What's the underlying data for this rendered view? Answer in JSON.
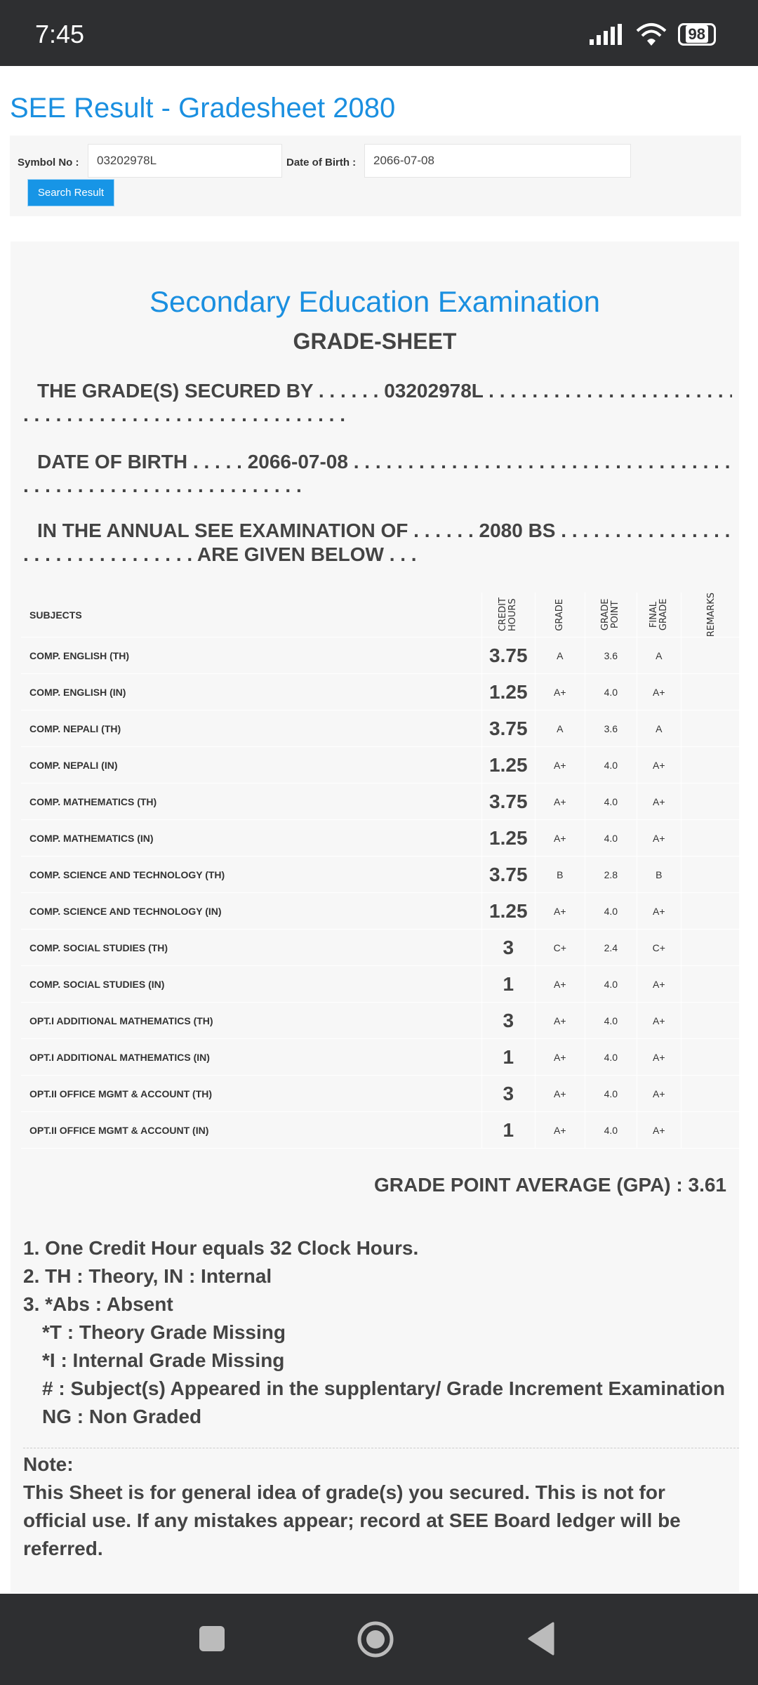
{
  "status": {
    "time": "7:45",
    "battery": "98"
  },
  "page_title": "SEE Result - Gradesheet 2080",
  "form": {
    "symbol_label": "Symbol No :",
    "symbol_value": "03202978L",
    "dob_label": "Date of Birth :",
    "dob_value": "2066-07-08",
    "search_button": "Search Result"
  },
  "sheet": {
    "heading": "Secondary Education Examination",
    "subheading": "GRADE-SHEET",
    "line1": "THE GRADE(S) SECURED BY . . . . . . 03202978L . . . . . . . . . . . . . . . . . . . . . . . . . . . . . . . . . . . . . . . . . . . . . . . . . . . . . . . .",
    "line1b": ". . . . . . . . . . . . . . . . . . . . . . . . . . . . . .",
    "line2": "DATE OF BIRTH . . . . . 2066-07-08 . . . . . . . . . . . . . . . . . . . . . . . . . . . . . . . . . . . . . . . . . . . . . . . . . . . . . . . . . .",
    "line2b": ". . . . . . . . . . . . . . . . . . . . . . . . . .",
    "line3": "IN THE ANNUAL SEE EXAMINATION OF . . . . . . 2080 BS . . . . . . . . . . . . . . . . . . . . . . . . . . . . . . . . .",
    "line3b": ". . . . . . . . . . . . . . . . ARE GIVEN BELOW . . .",
    "columns": [
      "SUBJECTS",
      "CREDIT HOURS",
      "GRADE",
      "GRADE POINT",
      "FINAL GRADE",
      "REMARKS"
    ],
    "rows": [
      [
        "COMP. ENGLISH (TH)",
        "3.75",
        "A",
        "3.6",
        "A",
        ""
      ],
      [
        "COMP. ENGLISH (IN)",
        "1.25",
        "A+",
        "4.0",
        "A+",
        ""
      ],
      [
        "COMP. NEPALI (TH)",
        "3.75",
        "A",
        "3.6",
        "A",
        ""
      ],
      [
        "COMP. NEPALI (IN)",
        "1.25",
        "A+",
        "4.0",
        "A+",
        ""
      ],
      [
        "COMP. MATHEMATICS (TH)",
        "3.75",
        "A+",
        "4.0",
        "A+",
        ""
      ],
      [
        "COMP. MATHEMATICS (IN)",
        "1.25",
        "A+",
        "4.0",
        "A+",
        ""
      ],
      [
        "COMP. SCIENCE AND TECHNOLOGY (TH)",
        "3.75",
        "B",
        "2.8",
        "B",
        ""
      ],
      [
        "COMP. SCIENCE AND TECHNOLOGY (IN)",
        "1.25",
        "A+",
        "4.0",
        "A+",
        ""
      ],
      [
        "COMP. SOCIAL STUDIES (TH)",
        "3",
        "C+",
        "2.4",
        "C+",
        ""
      ],
      [
        "COMP. SOCIAL STUDIES (IN)",
        "1",
        "A+",
        "4.0",
        "A+",
        ""
      ],
      [
        "OPT.I ADDITIONAL MATHEMATICS (TH)",
        "3",
        "A+",
        "4.0",
        "A+",
        ""
      ],
      [
        "OPT.I ADDITIONAL MATHEMATICS (IN)",
        "1",
        "A+",
        "4.0",
        "A+",
        ""
      ],
      [
        "OPT.II OFFICE MGMT & ACCOUNT (TH)",
        "3",
        "A+",
        "4.0",
        "A+",
        ""
      ],
      [
        "OPT.II OFFICE MGMT & ACCOUNT (IN)",
        "1",
        "A+",
        "4.0",
        "A+",
        ""
      ]
    ],
    "gpa": "GRADE POINT AVERAGE (GPA) : 3.61",
    "notes": [
      "1. One Credit Hour equals 32 Clock Hours.",
      "2. TH : Theory, IN : Internal",
      "3. *Abs : Absent",
      "*T : Theory Grade Missing",
      "*I : Internal Grade Missing",
      "# : Subject(s) Appeared in the supplentary/ Grade Increment Examination",
      "NG : Non Graded"
    ],
    "note_title": "Note:",
    "note_text": "This Sheet is for general idea of grade(s) you secured. This is not for official use. If any mistakes appear; record at SEE Board ledger will be referred."
  },
  "colors": {
    "accent": "#1a8fe0",
    "button": "#1795e6",
    "bars": "#2e2f31"
  }
}
